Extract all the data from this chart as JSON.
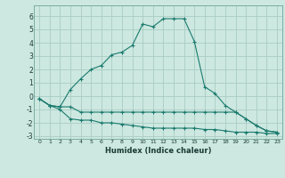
{
  "xlabel": "Humidex (Indice chaleur)",
  "bg_color": "#cce8e0",
  "grid_color": "#aaccC4",
  "line_color": "#1a7a6e",
  "x_values": [
    0,
    1,
    2,
    3,
    4,
    5,
    6,
    7,
    8,
    9,
    10,
    11,
    12,
    13,
    14,
    15,
    16,
    17,
    18,
    19,
    20,
    21,
    22,
    23
  ],
  "line1": [
    -0.2,
    -0.7,
    -0.8,
    -0.8,
    -1.2,
    -1.2,
    -1.2,
    -1.2,
    -1.2,
    -1.2,
    -1.2,
    -1.2,
    -1.2,
    -1.2,
    -1.2,
    -1.2,
    -1.2,
    -1.2,
    -1.2,
    -1.2,
    -1.7,
    -2.2,
    -2.6,
    -2.7
  ],
  "line2": [
    -0.2,
    -0.7,
    -1.0,
    -1.7,
    -1.8,
    -1.8,
    -2.0,
    -2.0,
    -2.1,
    -2.2,
    -2.3,
    -2.4,
    -2.4,
    -2.4,
    -2.4,
    -2.4,
    -2.5,
    -2.5,
    -2.6,
    -2.7,
    -2.7,
    -2.7,
    -2.8,
    -2.8
  ],
  "line3": [
    -0.2,
    -0.7,
    -0.8,
    0.5,
    1.3,
    2.0,
    2.3,
    3.1,
    3.3,
    3.8,
    5.4,
    5.2,
    5.8,
    5.8,
    5.8,
    4.1,
    0.7,
    0.2,
    -0.7,
    -1.2,
    -1.7,
    -2.2,
    -2.6,
    -2.7
  ],
  "ylim": [
    -3.2,
    6.8
  ],
  "xlim": [
    -0.5,
    23.5
  ],
  "yticks": [
    -3,
    -2,
    -1,
    0,
    1,
    2,
    3,
    4,
    5,
    6
  ],
  "xticks": [
    0,
    1,
    2,
    3,
    4,
    5,
    6,
    7,
    8,
    9,
    10,
    11,
    12,
    13,
    14,
    15,
    16,
    17,
    18,
    19,
    20,
    21,
    22,
    23
  ]
}
